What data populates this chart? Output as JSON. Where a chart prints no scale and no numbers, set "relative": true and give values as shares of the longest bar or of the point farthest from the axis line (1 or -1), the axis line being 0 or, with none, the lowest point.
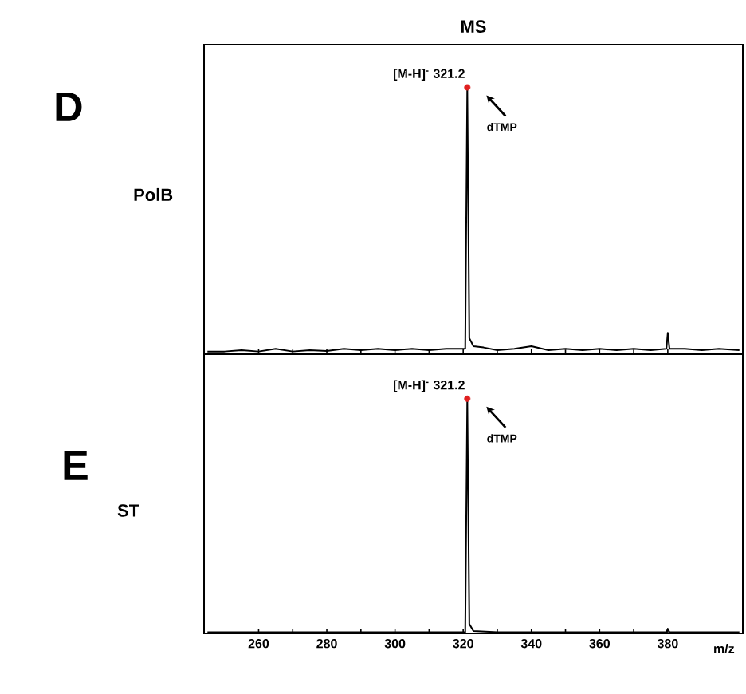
{
  "chart_data": [
    {
      "type": "line",
      "title": "MS",
      "relative": true,
      "xlim": [
        244,
        402
      ],
      "tick_labels": false,
      "xticks": [
        {
          "value": 260,
          "label": null
        },
        {
          "value": 280,
          "label": null
        },
        {
          "value": 300,
          "label": null
        },
        {
          "value": 320,
          "label": null
        },
        {
          "value": 340,
          "label": null
        },
        {
          "value": 360,
          "label": null
        },
        {
          "value": 380,
          "label": null
        }
      ],
      "series": [
        {
          "color": "#000000",
          "x": [
            245,
            250,
            255,
            260,
            265,
            270,
            275,
            280,
            285,
            290,
            295,
            300,
            305,
            310,
            315,
            320.6,
            321.2,
            321.8,
            323,
            326,
            330,
            335,
            340,
            345,
            350,
            355,
            360,
            365,
            370,
            375,
            379.6,
            380,
            380.5,
            385,
            390,
            395,
            401
          ],
          "values": [
            0.01,
            0.01,
            0.015,
            0.01,
            0.02,
            0.01,
            0.015,
            0.012,
            0.02,
            0.015,
            0.02,
            0.015,
            0.02,
            0.015,
            0.02,
            0.02,
            1,
            0.06,
            0.03,
            0.025,
            0.015,
            0.02,
            0.03,
            0.015,
            0.02,
            0.015,
            0.02,
            0.015,
            0.02,
            0.015,
            0.02,
            0.08,
            0.02,
            0.02,
            0.015,
            0.02,
            0.015
          ]
        },
        {
          "type": "scatter",
          "color": "#e02020",
          "x": [
            321.2
          ],
          "values": [
            1
          ]
        }
      ],
      "annotations": [
        "D",
        "PolB",
        {
          "text": "[M-H]$^{-}$ 321.2",
          "x": 321.2,
          "y": 1
        },
        "dTMP"
      ]
    },
    {
      "type": "line",
      "relative": true,
      "xlim": [
        244,
        402
      ],
      "xlabel": "m/z",
      "tick_labels": "x",
      "xticks": [
        260,
        280,
        300,
        320,
        340,
        360,
        380
      ],
      "series": [
        {
          "color": "#000000",
          "x": [
            245,
            260,
            280,
            300,
            315,
            320.6,
            321.2,
            321.8,
            323,
            330,
            340,
            360,
            379.6,
            380,
            380.5,
            401
          ],
          "values": [
            0.005,
            0.005,
            0.005,
            0.005,
            0.005,
            0.005,
            1,
            0.04,
            0.01,
            0.005,
            0.005,
            0.005,
            0.005,
            0.02,
            0.005,
            0.005
          ]
        },
        {
          "type": "scatter",
          "color": "#e02020",
          "x": [
            321.2
          ],
          "values": [
            1
          ]
        }
      ],
      "annotations": [
        "E",
        "ST",
        {
          "text": "[M-H]$^{-}$ 321.2",
          "x": 321.2,
          "y": 1
        },
        "dTMP"
      ]
    }
  ]
}
